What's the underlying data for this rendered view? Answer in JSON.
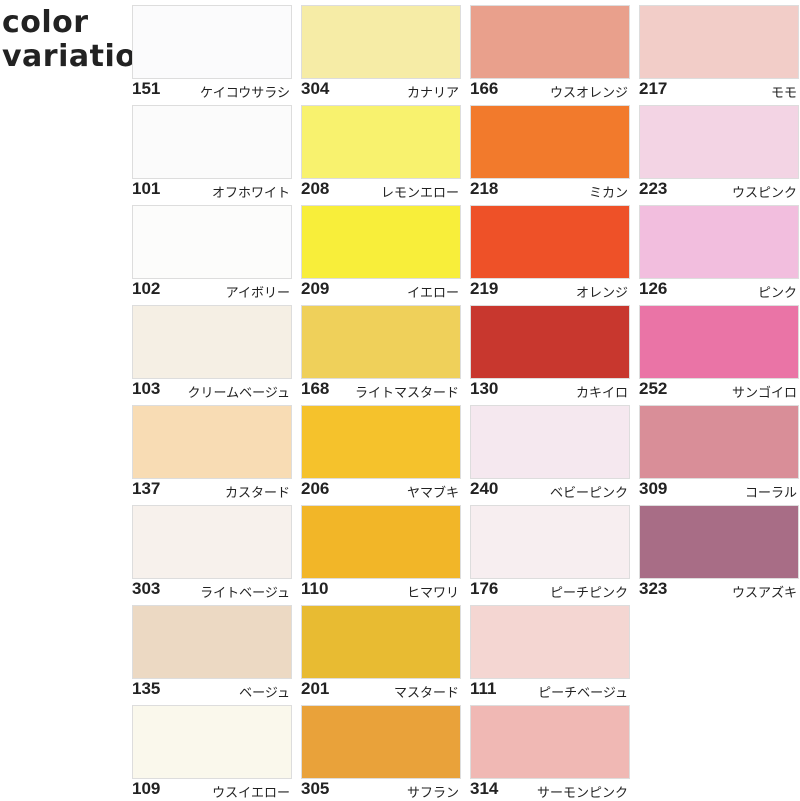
{
  "title_line1": "color",
  "title_line2": "variation",
  "columns": [
    [
      {
        "code": "151",
        "name": "ケイコウサラシ",
        "color": "#fbfbfc"
      },
      {
        "code": "101",
        "name": "オフホワイト",
        "color": "#fbfbfb"
      },
      {
        "code": "102",
        "name": "アイボリー",
        "color": "#fcfcfb"
      },
      {
        "code": "103",
        "name": "クリームベージュ",
        "color": "#f5efe4"
      },
      {
        "code": "137",
        "name": "カスタード",
        "color": "#f8dcb4"
      },
      {
        "code": "303",
        "name": "ライトベージュ",
        "color": "#f7f1ec"
      },
      {
        "code": "135",
        "name": "ベージュ",
        "color": "#ecd9c3"
      },
      {
        "code": "109",
        "name": "ウスイエロー",
        "color": "#faf8ec"
      }
    ],
    [
      {
        "code": "304",
        "name": "カナリア",
        "color": "#f6eca6"
      },
      {
        "code": "208",
        "name": "レモンエロー",
        "color": "#f8f26e"
      },
      {
        "code": "209",
        "name": "イエロー",
        "color": "#f8ee3a"
      },
      {
        "code": "168",
        "name": "ライトマスタード",
        "color": "#efd05a"
      },
      {
        "code": "206",
        "name": "ヤマブキ",
        "color": "#f5c22c"
      },
      {
        "code": "110",
        "name": "ヒマワリ",
        "color": "#f2b628"
      },
      {
        "code": "201",
        "name": "マスタード",
        "color": "#e8bb32"
      },
      {
        "code": "305",
        "name": "サフラン",
        "color": "#e9a23a"
      }
    ],
    [
      {
        "code": "166",
        "name": "ウスオレンジ",
        "color": "#e9a08c"
      },
      {
        "code": "218",
        "name": "ミカン",
        "color": "#f27a2c"
      },
      {
        "code": "219",
        "name": "オレンジ",
        "color": "#ee5128"
      },
      {
        "code": "130",
        "name": "カキイロ",
        "color": "#c8372e"
      },
      {
        "code": "240",
        "name": "ベビーピンク",
        "color": "#f5e8ef"
      },
      {
        "code": "176",
        "name": "ピーチピンク",
        "color": "#f7eef0"
      },
      {
        "code": "111",
        "name": "ピーチベージュ",
        "color": "#f4d6d2"
      },
      {
        "code": "314",
        "name": "サーモンピンク",
        "color": "#f0b8b4"
      }
    ],
    [
      {
        "code": "217",
        "name": "モモ",
        "color": "#f2cdc8"
      },
      {
        "code": "223",
        "name": "ウスピンク",
        "color": "#f3d4e4"
      },
      {
        "code": "126",
        "name": "ピンク",
        "color": "#f2bede"
      },
      {
        "code": "252",
        "name": "サンゴイロ",
        "color": "#ea74a6"
      },
      {
        "code": "309",
        "name": "コーラル",
        "color": "#d98e98"
      },
      {
        "code": "323",
        "name": "ウスアズキ",
        "color": "#a86d86"
      }
    ]
  ]
}
